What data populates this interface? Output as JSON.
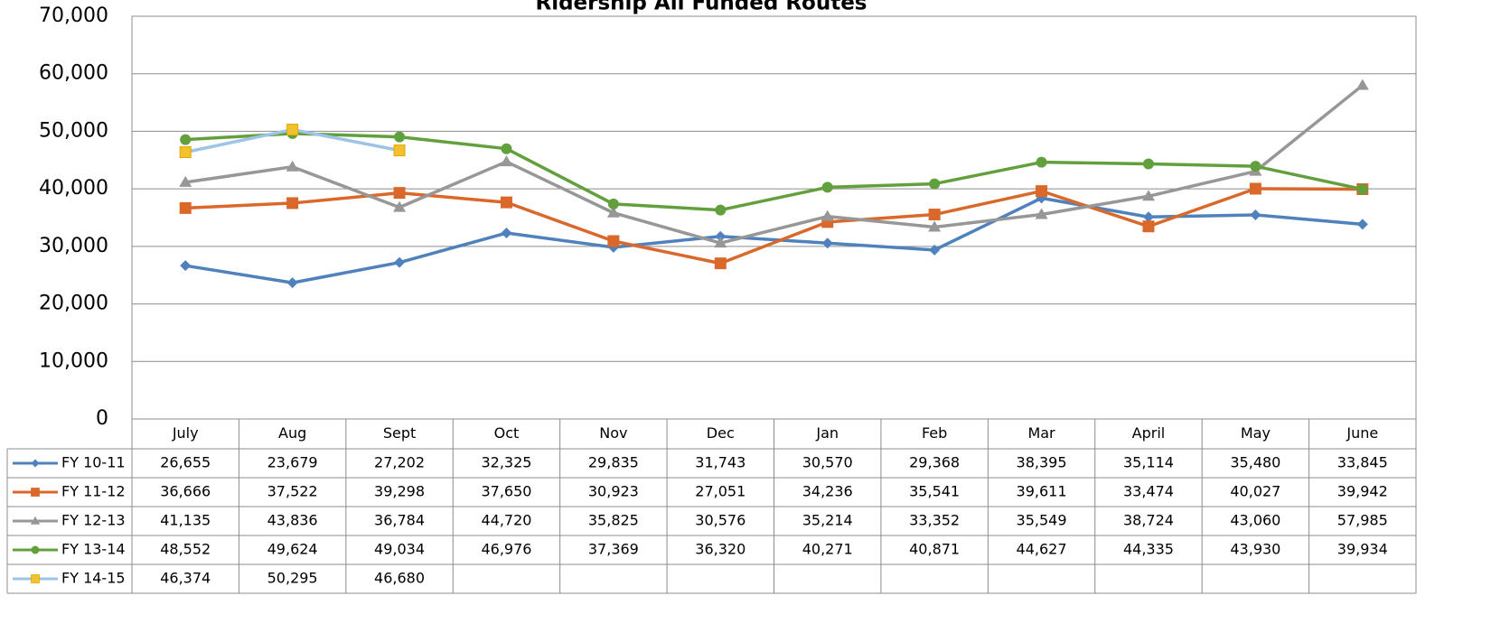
{
  "chart_data": {
    "type": "line",
    "title": "Ridership All Funded Routes",
    "categories": [
      "July",
      "Aug",
      "Sept",
      "Oct",
      "Nov",
      "Dec",
      "Jan",
      "Feb",
      "Mar",
      "April",
      "May",
      "June"
    ],
    "ylim": [
      0,
      70000
    ],
    "yticks": [
      0,
      {
        "value": 10000,
        "label": "10,000"
      },
      {
        "value": 20000,
        "label": "20,000"
      },
      {
        "value": 30000,
        "label": "30,000"
      },
      {
        "value": 40000,
        "label": "40,000"
      },
      {
        "value": 50000,
        "label": "50,000"
      },
      {
        "value": 60000,
        "label": "60,000"
      },
      {
        "value": 70000,
        "label": "70,000"
      }
    ],
    "grid": true,
    "series": [
      {
        "name": "FY 10-11",
        "color": "#4f81bd",
        "marker": "diamond",
        "marker_color": "#4f81bd",
        "values": [
          26655,
          23679,
          27202,
          32325,
          29835,
          31743,
          30570,
          29368,
          38395,
          35114,
          35480,
          33845
        ],
        "value_labels": [
          "26,655",
          "23,679",
          "27,202",
          "32,325",
          "29,835",
          "31,743",
          "30,570",
          "29,368",
          "38,395",
          "35,114",
          "35,480",
          "33,845"
        ]
      },
      {
        "name": "FY 11-12",
        "color": "#d9682a",
        "marker": "square",
        "marker_color": "#d9682a",
        "values": [
          36666,
          37522,
          39298,
          37650,
          30923,
          27051,
          34236,
          35541,
          39611,
          33474,
          40027,
          39942
        ],
        "value_labels": [
          "36,666",
          "37,522",
          "39,298",
          "37,650",
          "30,923",
          "27,051",
          "34,236",
          "35,541",
          "39,611",
          "33,474",
          "40,027",
          "39,942"
        ]
      },
      {
        "name": "FY 12-13",
        "color": "#979797",
        "marker": "triangle",
        "marker_color": "#979797",
        "values": [
          41135,
          43836,
          36784,
          44720,
          35825,
          30576,
          35214,
          33352,
          35549,
          38724,
          43060,
          57985
        ],
        "value_labels": [
          "41,135",
          "43,836",
          "36,784",
          "44,720",
          "35,825",
          "30,576",
          "35,214",
          "33,352",
          "35,549",
          "38,724",
          "43,060",
          "57,985"
        ]
      },
      {
        "name": "FY 13-14",
        "color": "#62a03e",
        "marker": "circle",
        "marker_color": "#62a03e",
        "values": [
          48552,
          49624,
          49034,
          46976,
          37369,
          36320,
          40271,
          40871,
          44627,
          44335,
          43930,
          39934
        ],
        "value_labels": [
          "48,552",
          "49,624",
          "49,034",
          "46,976",
          "37,369",
          "36,320",
          "40,271",
          "40,871",
          "44,627",
          "44,335",
          "43,930",
          "39,934"
        ]
      },
      {
        "name": "FY 14-15",
        "color": "#9dc3e6",
        "marker": "square",
        "marker_color": "#f2c12e",
        "values": [
          46374,
          50295,
          46680,
          null,
          null,
          null,
          null,
          null,
          null,
          null,
          null,
          null
        ],
        "value_labels": [
          "46,374",
          "50,295",
          "46,680",
          null,
          null,
          null,
          null,
          null,
          null,
          null,
          null,
          null
        ]
      }
    ]
  }
}
